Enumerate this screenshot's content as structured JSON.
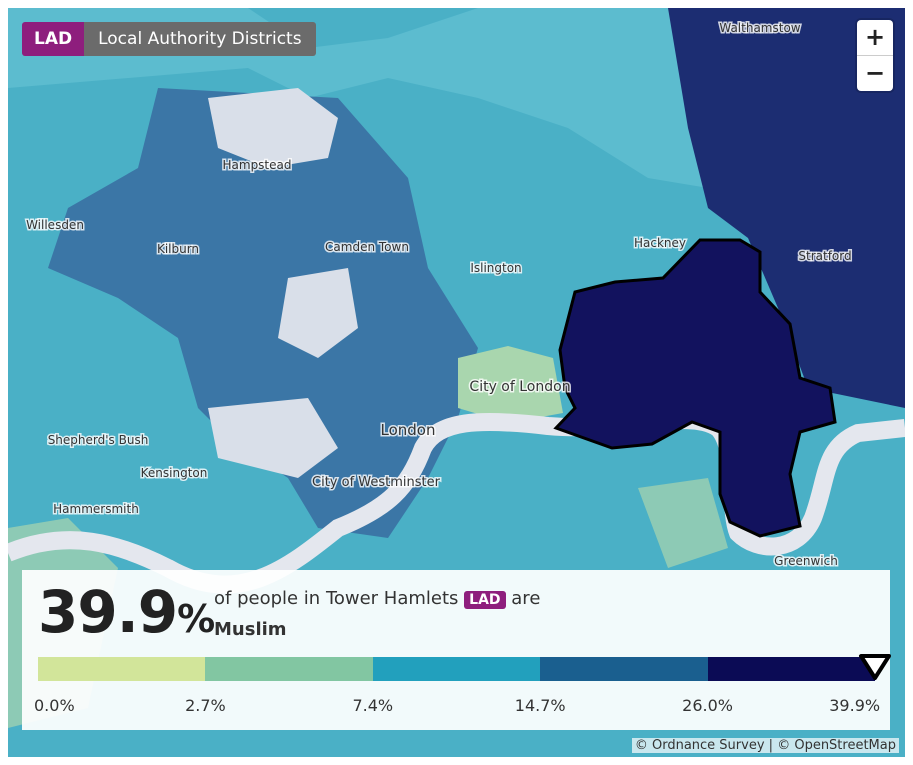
{
  "layer_badge": {
    "code": "LAD",
    "name": "Local Authority Districts"
  },
  "zoom": {
    "in": "+",
    "out": "−"
  },
  "place_labels": [
    "Walthamstow",
    "Hampstead",
    "Willesden",
    "Kilburn",
    "Camden Town",
    "Islington",
    "Hackney",
    "Stratford",
    "City of London",
    "London",
    "Shepherd's Bush",
    "Kensington",
    "City of Westminster",
    "Hammersmith",
    "Greenwich"
  ],
  "panel": {
    "value": "39.9",
    "unit": "%",
    "prefix": "of people in Tower Hamlets",
    "badge": "LAD",
    "suffix": "are",
    "category": "Muslim",
    "legend": {
      "breaks": [
        "0.0%",
        "2.7%",
        "7.4%",
        "14.7%",
        "26.0%",
        "39.9%"
      ],
      "colors": [
        "#d2e59a",
        "#82c6a2",
        "#22a0bd",
        "#1a5f8f",
        "#0b0b55"
      ]
    }
  },
  "attribution": {
    "os": "© Ordnance Survey",
    "sep": "|",
    "osm": "© OpenStreetMap"
  }
}
